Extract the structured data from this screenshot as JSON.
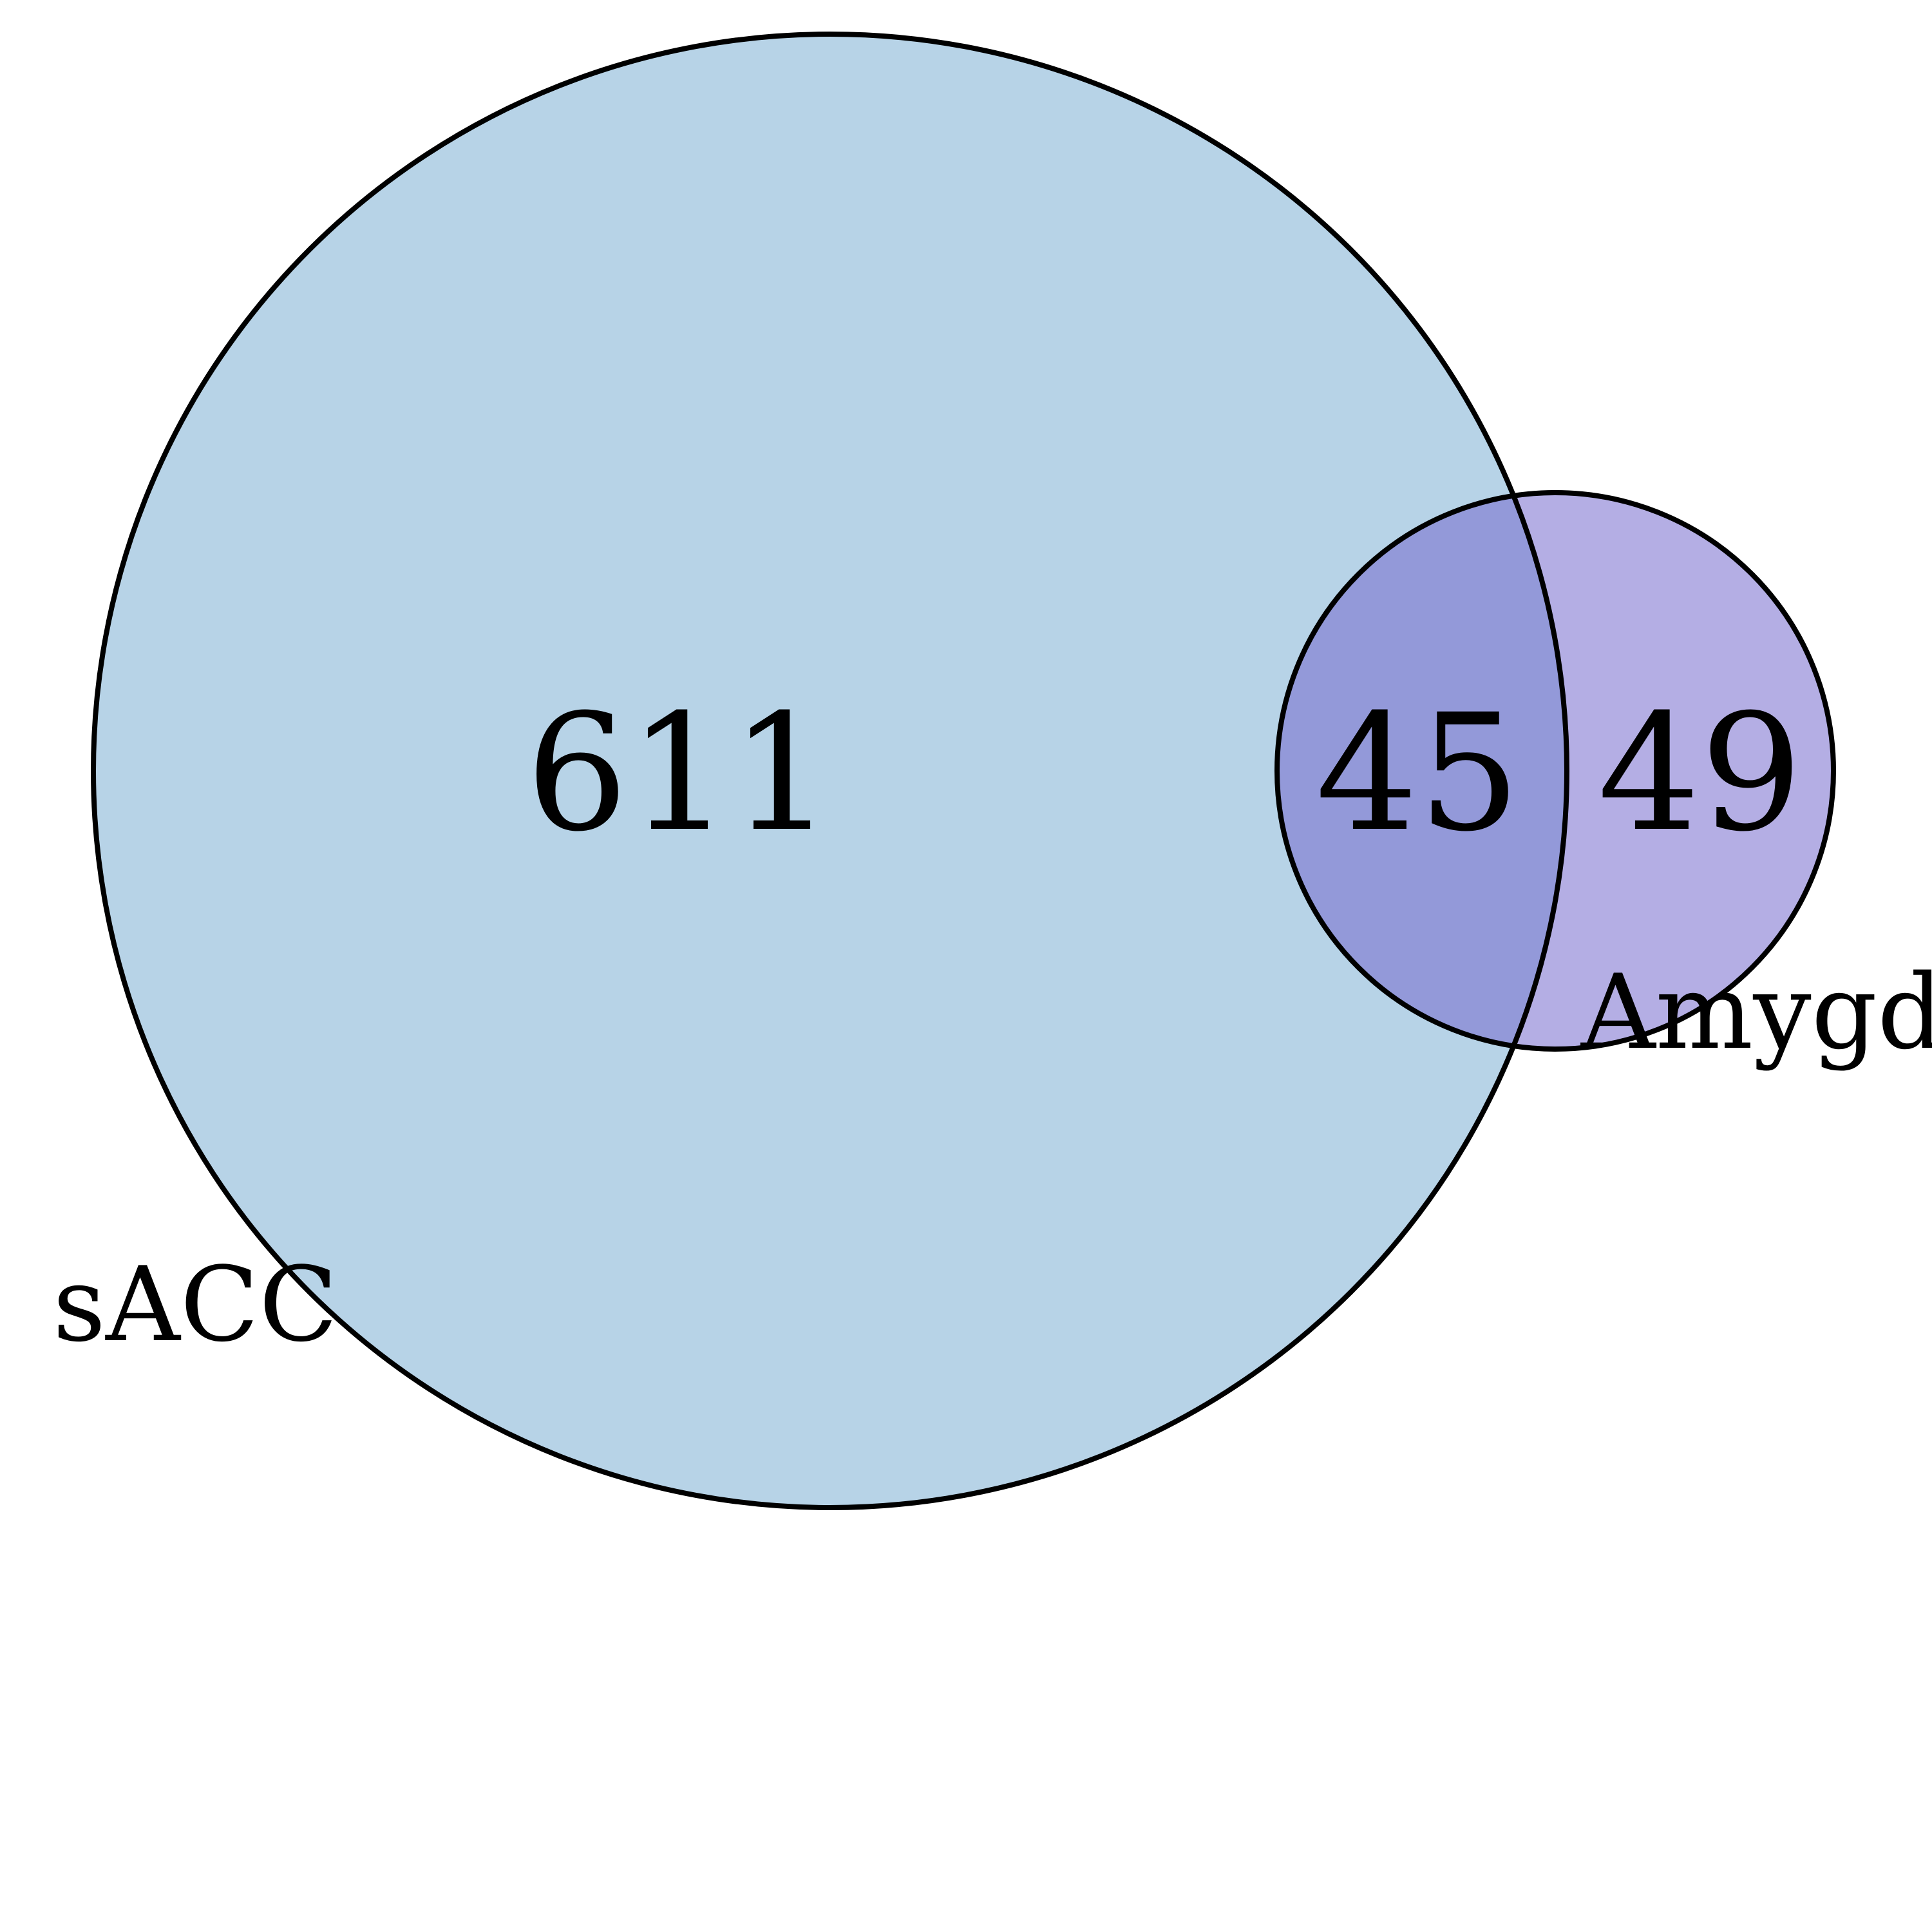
{
  "sets": [
    {
      "name": "sACC",
      "color": "#b7d3e7"
    },
    {
      "name": "Amygdala",
      "color": "#b4aee4"
    }
  ],
  "overlap_color": "#9399d9",
  "outline_color": "#000000",
  "counts": {
    "only_sACC": "611",
    "intersection": "45",
    "only_Amygdala": "49"
  }
}
